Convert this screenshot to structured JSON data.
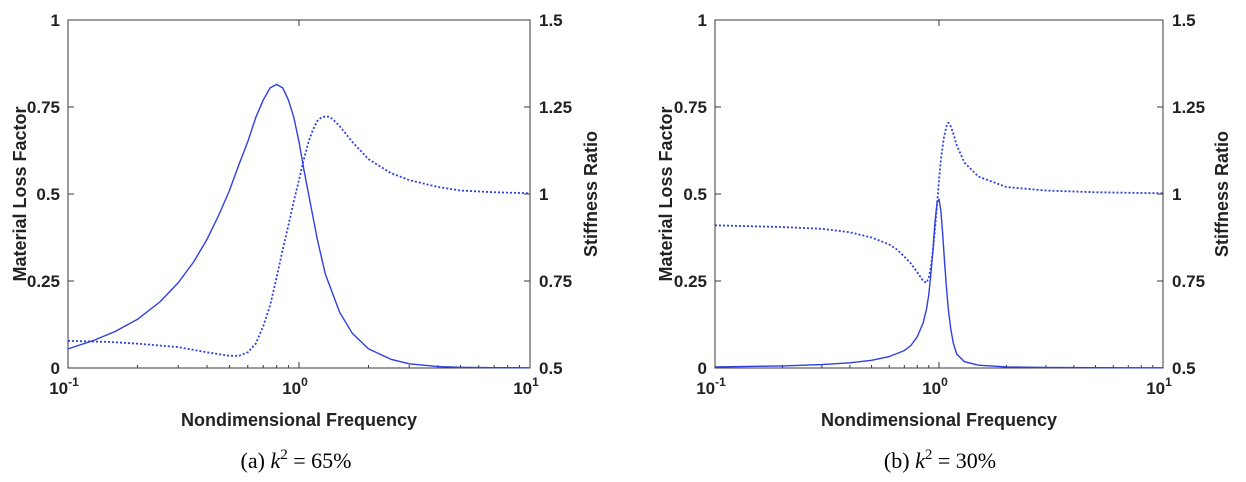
{
  "chart_data": [
    {
      "type": "line",
      "caption": {
        "prefix": "(a) ",
        "var": "k",
        "exp": "2",
        "suffix": " = 65%"
      },
      "xlabel": "Nondimensional Frequency",
      "ylabel_left": "Material Loss Factor",
      "ylabel_right": "Stiffness Ratio",
      "xscale": "log",
      "xlim": [
        0.1,
        10
      ],
      "ylim_left": [
        0,
        1
      ],
      "ylim_right": [
        0.5,
        1.5
      ],
      "x_ticks": [
        {
          "base": "10",
          "exp": "-1"
        },
        {
          "base": "10",
          "exp": "0"
        },
        {
          "base": "10",
          "exp": "1"
        }
      ],
      "yticks_left": [
        "0",
        "0.25",
        "0.5",
        "0.75",
        "1"
      ],
      "yticks_right": [
        "0.5",
        "0.75",
        "1",
        "1.25",
        "1.5"
      ],
      "grid": false,
      "color": "#2f3fe0",
      "series": [
        {
          "axis": "left",
          "style": "solid",
          "x": [
            0.1,
            0.13,
            0.16,
            0.2,
            0.25,
            0.3,
            0.35,
            0.4,
            0.45,
            0.5,
            0.55,
            0.6,
            0.65,
            0.7,
            0.75,
            0.8,
            0.85,
            0.9,
            0.95,
            1.0,
            1.05,
            1.1,
            1.2,
            1.3,
            1.5,
            1.7,
            2.0,
            2.5,
            3.0,
            4.0,
            5.0,
            7.0,
            10.0
          ],
          "y": [
            0.055,
            0.08,
            0.105,
            0.14,
            0.19,
            0.245,
            0.305,
            0.37,
            0.44,
            0.51,
            0.585,
            0.65,
            0.72,
            0.77,
            0.805,
            0.815,
            0.805,
            0.77,
            0.72,
            0.65,
            0.57,
            0.5,
            0.37,
            0.27,
            0.16,
            0.1,
            0.055,
            0.025,
            0.012,
            0.004,
            0.002,
            0.001,
            0.0005
          ]
        },
        {
          "axis": "right",
          "style": "dotted",
          "x": [
            0.1,
            0.15,
            0.2,
            0.3,
            0.4,
            0.5,
            0.55,
            0.6,
            0.65,
            0.7,
            0.75,
            0.8,
            0.85,
            0.9,
            0.95,
            1.0,
            1.05,
            1.1,
            1.15,
            1.2,
            1.25,
            1.3,
            1.35,
            1.4,
            1.5,
            1.7,
            2.0,
            2.5,
            3.0,
            4.0,
            5.0,
            7.0,
            10.0
          ],
          "y": [
            0.578,
            0.575,
            0.57,
            0.56,
            0.545,
            0.535,
            0.535,
            0.545,
            0.57,
            0.62,
            0.68,
            0.76,
            0.84,
            0.91,
            0.98,
            1.04,
            1.1,
            1.15,
            1.185,
            1.21,
            1.22,
            1.223,
            1.222,
            1.215,
            1.195,
            1.15,
            1.1,
            1.06,
            1.04,
            1.02,
            1.01,
            1.005,
            1.002
          ]
        }
      ]
    },
    {
      "type": "line",
      "caption": {
        "prefix": "(b) ",
        "var": "k",
        "exp": "2",
        "suffix": " = 30%"
      },
      "xlabel": "Nondimensional Frequency",
      "ylabel_left": "Material Loss Factor",
      "ylabel_right": "Stiffness Ratio",
      "xscale": "log",
      "xlim": [
        0.1,
        10
      ],
      "ylim_left": [
        0,
        1
      ],
      "ylim_right": [
        0.5,
        1.5
      ],
      "x_ticks": [
        {
          "base": "10",
          "exp": "-1"
        },
        {
          "base": "10",
          "exp": "0"
        },
        {
          "base": "10",
          "exp": "1"
        }
      ],
      "yticks_left": [
        "0",
        "0.25",
        "0.5",
        "0.75",
        "1"
      ],
      "yticks_right": [
        "0.5",
        "0.75",
        "1",
        "1.25",
        "1.5"
      ],
      "grid": false,
      "color": "#2f3fe0",
      "series": [
        {
          "axis": "left",
          "style": "solid",
          "x": [
            0.1,
            0.2,
            0.3,
            0.4,
            0.5,
            0.6,
            0.7,
            0.75,
            0.8,
            0.85,
            0.88,
            0.9,
            0.92,
            0.94,
            0.96,
            0.98,
            1.0,
            1.02,
            1.04,
            1.06,
            1.08,
            1.1,
            1.13,
            1.16,
            1.2,
            1.3,
            1.5,
            2.0,
            3.0,
            5.0,
            10.0
          ],
          "y": [
            0.003,
            0.006,
            0.01,
            0.015,
            0.022,
            0.033,
            0.05,
            0.065,
            0.09,
            0.13,
            0.17,
            0.21,
            0.27,
            0.34,
            0.42,
            0.475,
            0.485,
            0.45,
            0.38,
            0.3,
            0.23,
            0.17,
            0.11,
            0.07,
            0.04,
            0.018,
            0.008,
            0.003,
            0.0015,
            0.0008,
            0.0004
          ]
        },
        {
          "axis": "right",
          "style": "dotted",
          "x": [
            0.1,
            0.2,
            0.3,
            0.4,
            0.5,
            0.6,
            0.65,
            0.7,
            0.75,
            0.8,
            0.85,
            0.88,
            0.9,
            0.92,
            0.94,
            0.96,
            0.98,
            1.0,
            1.02,
            1.05,
            1.08,
            1.1,
            1.12,
            1.15,
            1.2,
            1.3,
            1.5,
            2.0,
            3.0,
            5.0,
            10.0
          ],
          "y": [
            0.91,
            0.905,
            0.9,
            0.89,
            0.875,
            0.855,
            0.84,
            0.82,
            0.8,
            0.775,
            0.75,
            0.745,
            0.76,
            0.79,
            0.84,
            0.9,
            0.97,
            1.04,
            1.1,
            1.16,
            1.195,
            1.205,
            1.2,
            1.18,
            1.14,
            1.09,
            1.05,
            1.02,
            1.01,
            1.005,
            1.002
          ]
        }
      ]
    }
  ]
}
